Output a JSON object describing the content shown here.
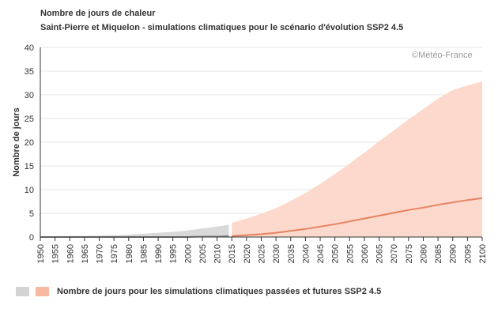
{
  "header": {
    "title": "Nombre de jours de chaleur",
    "subtitle": "Saint-Pierre et Miquelon - simulations climatiques pour le scénario d'évolution SSP2 4.5",
    "watermark": "©Météo-France"
  },
  "legend": {
    "label": "Nombre de jours pour les simulations climatiques passées et futures SSP2 4.5"
  },
  "colors": {
    "historical_band": "#d9d9d9",
    "future_band": "#fcd9cc",
    "future_median": "#e8825e",
    "historical_median": "#8c8c8c",
    "grid": "#e5e5e5",
    "axis": "#333333",
    "legend_hist": "#d3d3d3",
    "legend_future": "#f7b9a2"
  },
  "chart_data": {
    "type": "area",
    "title": "Nombre de jours de chaleur",
    "subtitle": "Saint-Pierre et Miquelon - simulations climatiques pour le scénario d'évolution SSP2 4.5",
    "ylabel": "Nombre de jours",
    "xlabel": "",
    "xlim": [
      1950,
      2100
    ],
    "ylim": [
      0,
      40
    ],
    "grid": true,
    "legend_position": "bottom-left",
    "x_ticks": [
      1950,
      1955,
      1960,
      1965,
      1970,
      1975,
      1980,
      1985,
      1990,
      1995,
      2000,
      2005,
      2010,
      2015,
      2020,
      2025,
      2030,
      2035,
      2040,
      2045,
      2050,
      2055,
      2060,
      2065,
      2070,
      2075,
      2080,
      2085,
      2090,
      2095,
      2100
    ],
    "y_ticks": [
      0,
      5,
      10,
      15,
      20,
      25,
      30,
      35,
      40
    ],
    "series": [
      {
        "name": "Nombre de jours pour les simulations climatiques passées et futures SSP2 4.5",
        "period": "historical",
        "x": [
          1950,
          1960,
          1970,
          1980,
          1985,
          1990,
          1995,
          2000,
          2005,
          2010,
          2014
        ],
        "low": [
          0,
          0,
          0,
          0,
          0,
          0,
          0,
          0,
          0,
          0,
          0
        ],
        "high": [
          0.1,
          0.2,
          0.3,
          0.5,
          0.7,
          0.9,
          1.1,
          1.4,
          1.8,
          2.2,
          2.6
        ],
        "median": [
          0,
          0,
          0,
          0,
          0,
          0,
          0,
          0,
          0.1,
          0.1,
          0.2
        ]
      },
      {
        "name": "Nombre de jours pour les simulations climatiques passées et futures SSP2 4.5",
        "period": "future",
        "x": [
          2015,
          2020,
          2025,
          2030,
          2035,
          2040,
          2045,
          2050,
          2055,
          2060,
          2065,
          2070,
          2075,
          2080,
          2085,
          2090,
          2095,
          2100
        ],
        "low": [
          0,
          0,
          0,
          0,
          0,
          0,
          0,
          0,
          0,
          0,
          0,
          0,
          0,
          0,
          0,
          0,
          0,
          0
        ],
        "high": [
          3.0,
          3.9,
          4.9,
          6.1,
          7.6,
          9.3,
          11.2,
          13.3,
          15.5,
          17.8,
          20.2,
          22.5,
          24.8,
          27.0,
          29.2,
          31.0,
          32.0,
          32.8
        ],
        "median": [
          0.2,
          0.4,
          0.6,
          0.9,
          1.3,
          1.7,
          2.2,
          2.7,
          3.3,
          3.9,
          4.5,
          5.1,
          5.7,
          6.2,
          6.8,
          7.3,
          7.8,
          8.2
        ]
      }
    ]
  }
}
